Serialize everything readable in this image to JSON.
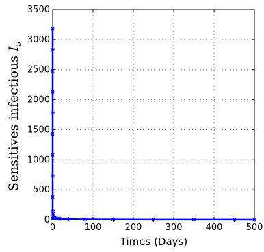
{
  "chart_data": {
    "type": "line",
    "title": "",
    "xlabel": "Times (Days)",
    "ylabel": "Sensitives infectious ",
    "ylabel_symbol": "I",
    "ylabel_subscript": "s",
    "xlim": [
      0,
      500
    ],
    "ylim": [
      0,
      3500
    ],
    "x_ticks": [
      0,
      100,
      200,
      300,
      400,
      500
    ],
    "y_ticks": [
      0,
      500,
      1000,
      1500,
      2000,
      2500,
      3000,
      3500
    ],
    "grid": true,
    "grid_style": "dotted",
    "series": [
      {
        "color": "#0000ff",
        "marker": "asterisk",
        "x": [
          0,
          0,
          0,
          0,
          0,
          0,
          0,
          0,
          0,
          0,
          0,
          1,
          2,
          3,
          5,
          8,
          12,
          20,
          40,
          80,
          150,
          250,
          350,
          450,
          500
        ],
        "y": [
          3180,
          2830,
          2480,
          2130,
          1780,
          1430,
          1080,
          730,
          380,
          150,
          20,
          100,
          60,
          40,
          30,
          25,
          20,
          15,
          10,
          6,
          4,
          2,
          1,
          1,
          0
        ]
      }
    ]
  }
}
